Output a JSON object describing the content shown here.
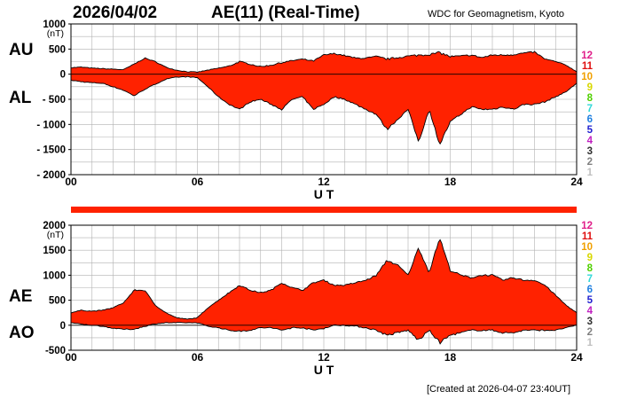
{
  "header": {
    "date": "2026/04/02",
    "title": "AE(11) (Real-Time)",
    "source": "WDC for Geomagnetism, Kyoto"
  },
  "footer": {
    "created": "[Created at 2026-04-07 23:40UT]"
  },
  "station_count": {
    "labels": [
      "12",
      "11",
      "10",
      "9",
      "8",
      "7",
      "6",
      "5",
      "4",
      "3",
      "2",
      "1"
    ],
    "colors": [
      "#e0208a",
      "#e01010",
      "#f0a000",
      "#d8d800",
      "#50d000",
      "#30d8d8",
      "#1f7fe0",
      "#2020d0",
      "#c020c0",
      "#303030",
      "#808080",
      "#c0c0c0"
    ]
  },
  "indicator_bar": {
    "color": "#ff2200"
  },
  "chart_data": [
    {
      "type": "area",
      "panel": "top",
      "series_labels": [
        "AU",
        "AL"
      ],
      "unit_label": "(nT)",
      "xlabel": "U T",
      "x_ticks": [
        "00",
        "06",
        "12",
        "18",
        "24"
      ],
      "xlim": [
        0,
        24
      ],
      "ylim": [
        -2000,
        1000
      ],
      "y_ticks": [
        "1000",
        "500",
        "0",
        "- 500",
        "- 1000",
        "- 1500",
        "- 2000"
      ],
      "y_tick_values": [
        1000,
        500,
        0,
        -500,
        -1000,
        -1500,
        -2000
      ],
      "fill_color": "#ff2200",
      "hours": [
        0,
        0.5,
        1,
        1.5,
        2,
        2.5,
        3,
        3.5,
        4,
        4.5,
        5,
        5.5,
        6,
        6.5,
        7,
        7.5,
        8,
        8.5,
        9,
        9.5,
        10,
        10.5,
        11,
        11.5,
        12,
        12.5,
        13,
        13.5,
        14,
        14.5,
        15,
        15.5,
        16,
        16.5,
        17,
        17.5,
        18,
        18.5,
        19,
        19.5,
        20,
        20.5,
        21,
        21.5,
        22,
        22.5,
        23,
        23.5,
        24
      ],
      "upper": [
        130,
        140,
        120,
        110,
        100,
        90,
        200,
        320,
        250,
        140,
        80,
        50,
        40,
        80,
        120,
        160,
        250,
        200,
        150,
        180,
        230,
        270,
        300,
        260,
        380,
        410,
        370,
        320,
        320,
        350,
        300,
        330,
        360,
        380,
        390,
        430,
        350,
        360,
        380,
        330,
        380,
        380,
        390,
        420,
        440,
        300,
        250,
        180,
        50
      ],
      "lower": [
        -120,
        -150,
        -170,
        -180,
        -250,
        -320,
        -430,
        -300,
        -200,
        -100,
        -60,
        -50,
        -70,
        -250,
        -450,
        -600,
        -700,
        -550,
        -500,
        -600,
        -700,
        -500,
        -450,
        -700,
        -600,
        -450,
        -500,
        -600,
        -700,
        -800,
        -1100,
        -900,
        -700,
        -1350,
        -700,
        -1400,
        -950,
        -800,
        -650,
        -700,
        -700,
        -650,
        -700,
        -600,
        -600,
        -550,
        -450,
        -350,
        -180
      ]
    },
    {
      "type": "area",
      "panel": "bottom",
      "series_labels": [
        "AE",
        "AO"
      ],
      "unit_label": "(nT)",
      "xlabel": "U T",
      "x_ticks": [
        "00",
        "06",
        "12",
        "18",
        "24"
      ],
      "xlim": [
        0,
        24
      ],
      "ylim": [
        -500,
        2000
      ],
      "y_ticks": [
        "2000",
        "1500",
        "1000",
        "500",
        "0",
        "-500"
      ],
      "y_tick_values": [
        2000,
        1500,
        1000,
        500,
        0,
        -500
      ],
      "fill_color": "#ff2200",
      "hours": [
        0,
        0.5,
        1,
        1.5,
        2,
        2.5,
        3,
        3.5,
        4,
        4.5,
        5,
        5.5,
        6,
        6.5,
        7,
        7.5,
        8,
        8.5,
        9,
        9.5,
        10,
        10.5,
        11,
        11.5,
        12,
        12.5,
        13,
        13.5,
        14,
        14.5,
        15,
        15.5,
        16,
        16.5,
        17,
        17.5,
        18,
        18.5,
        19,
        19.5,
        20,
        20.5,
        21,
        21.5,
        22,
        22.5,
        23,
        23.5,
        24
      ],
      "upper": [
        250,
        300,
        280,
        300,
        350,
        450,
        700,
        700,
        400,
        250,
        150,
        120,
        150,
        350,
        500,
        650,
        800,
        700,
        650,
        700,
        850,
        750,
        700,
        850,
        900,
        800,
        800,
        850,
        900,
        1000,
        1300,
        1200,
        1000,
        1550,
        1050,
        1750,
        1100,
        1000,
        950,
        1000,
        1000,
        900,
        950,
        900,
        900,
        800,
        600,
        400,
        250
      ],
      "lower": [
        50,
        20,
        0,
        -20,
        -60,
        -80,
        -80,
        -20,
        30,
        50,
        50,
        50,
        50,
        -20,
        -50,
        -100,
        -120,
        -100,
        -50,
        -50,
        -100,
        -50,
        -50,
        -100,
        -60,
        0,
        0,
        -20,
        -50,
        -100,
        -200,
        -150,
        -100,
        -300,
        -100,
        -350,
        -200,
        -150,
        -100,
        -100,
        -100,
        -150,
        -150,
        -100,
        -100,
        -100,
        -100,
        -50,
        0
      ]
    }
  ]
}
